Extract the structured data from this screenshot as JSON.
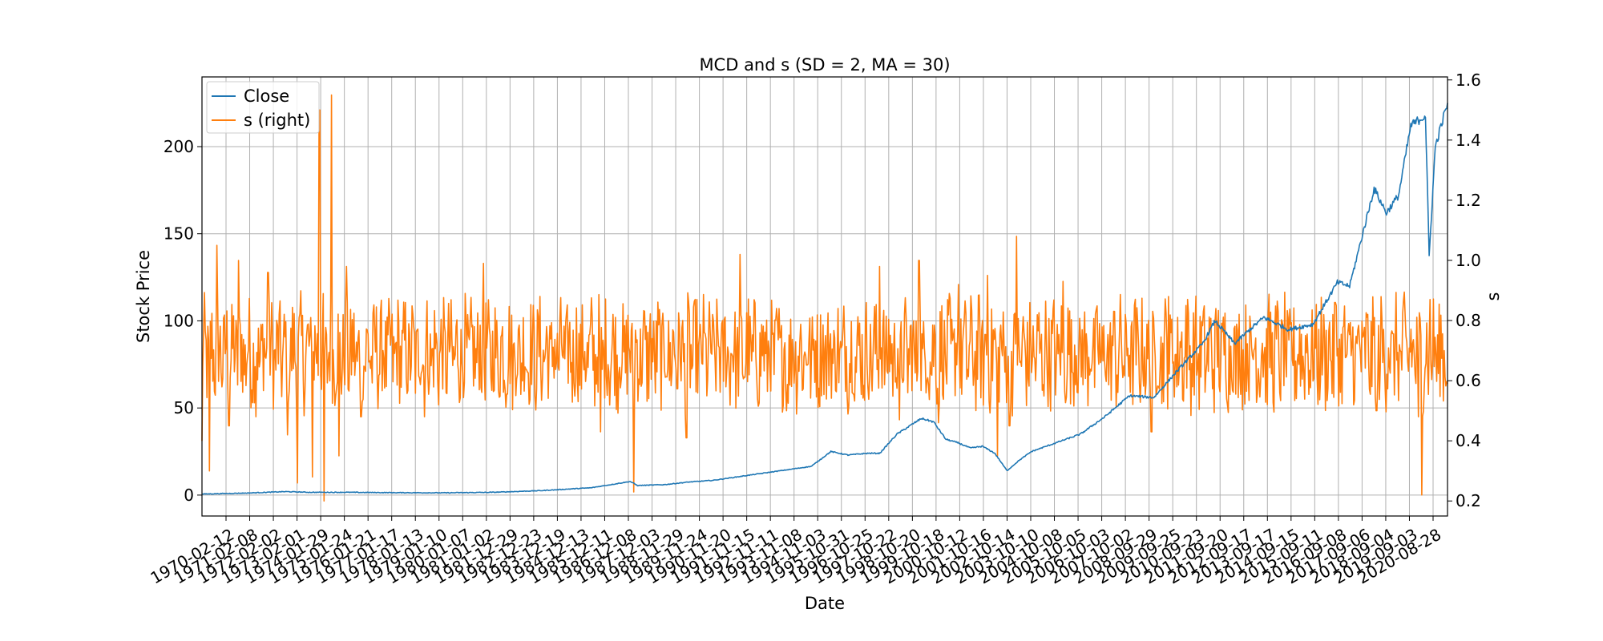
{
  "chart_data": {
    "type": "line",
    "title": "MCD and s (SD = 2, MA = 30)",
    "xlabel": "Date",
    "ylabel": "Stock Price",
    "ylabel_right": "s",
    "grid": true,
    "legend_position": "top-left",
    "x_tick_labels": [
      "1970-02-12",
      "1971-02-08",
      "1972-02-02",
      "1973-02-01",
      "1974-01-29",
      "1975-01-24",
      "1976-01-21",
      "1977-01-17",
      "1978-01-13",
      "1979-01-10",
      "1980-01-07",
      "1981-01-02",
      "1981-12-29",
      "1982-12-23",
      "1983-12-19",
      "1984-12-13",
      "1985-12-11",
      "1986-12-08",
      "1987-12-03",
      "1988-11-29",
      "1989-11-24",
      "1990-11-20",
      "1991-11-15",
      "1992-11-11",
      "1993-11-08",
      "1994-11-03",
      "1995-10-31",
      "1996-10-25",
      "1997-10-22",
      "1998-10-20",
      "1999-10-18",
      "2000-10-12",
      "2001-10-16",
      "2002-10-14",
      "2003-10-10",
      "2004-10-08",
      "2005-10-05",
      "2006-10-03",
      "2007-10-02",
      "2008-09-29",
      "2009-09-25",
      "2010-09-23",
      "2011-09-20",
      "2012-09-17",
      "2013-09-17",
      "2014-09-15",
      "2015-09-11",
      "2016-09-08",
      "2017-09-06",
      "2018-09-04",
      "2019-09-03",
      "2020-08-28"
    ],
    "x_range_years": [
      1970.1,
      2021.0
    ],
    "ylim_left": [
      -12,
      240
    ],
    "yticks_left": [
      0,
      50,
      100,
      150,
      200
    ],
    "ylim_right": [
      0.15,
      1.61
    ],
    "yticks_right": [
      0.2,
      0.4,
      0.6,
      0.8,
      1.0,
      1.2,
      1.4,
      1.6
    ],
    "series": [
      {
        "name": "Close",
        "axis": "left",
        "color": "#1f77b4",
        "points": [
          [
            1970.1,
            0.6
          ],
          [
            1972.0,
            1.2
          ],
          [
            1973.5,
            2.0
          ],
          [
            1974.5,
            1.6
          ],
          [
            1976.0,
            1.6
          ],
          [
            1978.0,
            1.4
          ],
          [
            1980.0,
            1.3
          ],
          [
            1982.0,
            1.6
          ],
          [
            1984.0,
            2.6
          ],
          [
            1986.0,
            4.2
          ],
          [
            1987.6,
            7.8
          ],
          [
            1987.9,
            5.5
          ],
          [
            1989.0,
            6.0
          ],
          [
            1990.0,
            7.5
          ],
          [
            1991.0,
            8.5
          ],
          [
            1992.0,
            10.5
          ],
          [
            1993.0,
            12.5
          ],
          [
            1994.0,
            14.5
          ],
          [
            1995.0,
            16.5
          ],
          [
            1995.8,
            25.0
          ],
          [
            1996.5,
            23.0
          ],
          [
            1997.3,
            24.0
          ],
          [
            1997.8,
            24.0
          ],
          [
            1998.5,
            35.0
          ],
          [
            1999.5,
            44.0
          ],
          [
            2000.0,
            42.0
          ],
          [
            2000.5,
            32.0
          ],
          [
            2001.0,
            30.0
          ],
          [
            2001.5,
            27.0
          ],
          [
            2002.0,
            28.0
          ],
          [
            2002.5,
            24.0
          ],
          [
            2003.0,
            14.0
          ],
          [
            2003.5,
            20.0
          ],
          [
            2004.0,
            25.0
          ],
          [
            2005.0,
            30.0
          ],
          [
            2006.0,
            35.0
          ],
          [
            2007.0,
            45.0
          ],
          [
            2008.0,
            57.0
          ],
          [
            2009.0,
            56.0
          ],
          [
            2010.0,
            72.0
          ],
          [
            2011.0,
            87.0
          ],
          [
            2011.5,
            100.0
          ],
          [
            2012.3,
            87.0
          ],
          [
            2013.0,
            96.0
          ],
          [
            2013.5,
            102.0
          ],
          [
            2014.5,
            95.0
          ],
          [
            2015.5,
            98.0
          ],
          [
            2016.5,
            122.0
          ],
          [
            2017.0,
            120.0
          ],
          [
            2017.5,
            148.0
          ],
          [
            2018.0,
            176.0
          ],
          [
            2018.5,
            162.0
          ],
          [
            2019.0,
            172.0
          ],
          [
            2019.5,
            212.0
          ],
          [
            2020.1,
            218.0
          ],
          [
            2020.25,
            137.0
          ],
          [
            2020.5,
            200.0
          ],
          [
            2021.0,
            225.0
          ]
        ]
      },
      {
        "name": "s (right)",
        "axis": "right",
        "color": "#ff7f0e",
        "baseline": 0.69,
        "spikes": [
          [
            1970.1,
            0.4
          ],
          [
            1970.4,
            0.3
          ],
          [
            1970.7,
            1.05
          ],
          [
            1971.2,
            0.45
          ],
          [
            1971.6,
            1.0
          ],
          [
            1972.3,
            0.48
          ],
          [
            1972.8,
            0.96
          ],
          [
            1973.6,
            0.42
          ],
          [
            1974.0,
            0.26
          ],
          [
            1974.6,
            0.28
          ],
          [
            1974.9,
            1.5
          ],
          [
            1975.1,
            0.2
          ],
          [
            1975.4,
            1.55
          ],
          [
            1975.7,
            0.35
          ],
          [
            1976.0,
            0.98
          ],
          [
            1976.6,
            0.48
          ],
          [
            1979.2,
            0.48
          ],
          [
            1981.6,
            0.99
          ],
          [
            1986.4,
            0.43
          ],
          [
            1987.75,
            0.23
          ],
          [
            1989.9,
            0.41
          ],
          [
            1992.1,
            1.02
          ],
          [
            1994.0,
            0.5
          ],
          [
            1997.8,
            0.98
          ],
          [
            1998.6,
            0.47
          ],
          [
            1999.4,
            1.0
          ],
          [
            2000.2,
            0.46
          ],
          [
            2001.0,
            0.92
          ],
          [
            2002.2,
            0.95
          ],
          [
            2002.6,
            0.35
          ],
          [
            2003.1,
            0.45
          ],
          [
            2003.4,
            1.08
          ],
          [
            2005.3,
            0.93
          ],
          [
            2008.9,
            0.43
          ],
          [
            2009.6,
            0.88
          ],
          [
            2010.3,
            0.85
          ],
          [
            2016.4,
            0.86
          ],
          [
            2018.1,
            0.5
          ],
          [
            2019.8,
            0.48
          ],
          [
            2019.95,
            0.22
          ],
          [
            2020.3,
            0.87
          ],
          [
            2021.0,
            0.59
          ]
        ]
      }
    ]
  }
}
